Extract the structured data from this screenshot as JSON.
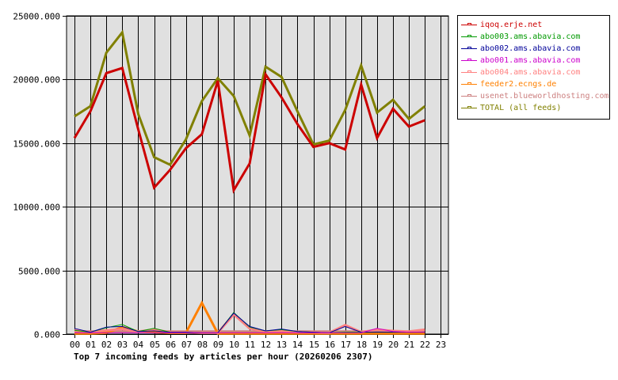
{
  "chart_data": {
    "type": "line",
    "title": "Top 7 incoming feeds by articles per hour (20260206 2307)",
    "xlabel": "",
    "ylabel": "",
    "ylim": [
      0,
      25000
    ],
    "yticks": [
      "0.000",
      "5000.000",
      "10000.000",
      "15000.000",
      "20000.000",
      "25000.000"
    ],
    "grid": true,
    "legend_position": "right",
    "categories": [
      "00",
      "01",
      "02",
      "03",
      "04",
      "05",
      "06",
      "07",
      "08",
      "09",
      "10",
      "11",
      "12",
      "13",
      "14",
      "15",
      "16",
      "17",
      "18",
      "19",
      "20",
      "21",
      "22",
      "23"
    ],
    "series": [
      {
        "name": "iqoq.erje.net",
        "color": "#cc0000",
        "width": 3,
        "values": [
          15400,
          17500,
          20500,
          20900,
          16100,
          11500,
          12900,
          14600,
          15700,
          19900,
          11300,
          13400,
          20400,
          18600,
          16500,
          14700,
          15000,
          14500,
          19600,
          15400,
          17700,
          16300,
          16800
        ]
      },
      {
        "name": "abo003.ams.abavia.com",
        "color": "#009900",
        "width": 1,
        "values": [
          300,
          150,
          500,
          750,
          200,
          450,
          150,
          150,
          100,
          100,
          1700,
          550,
          250,
          350,
          200,
          150,
          100,
          150,
          150,
          150,
          150,
          150,
          150
        ]
      },
      {
        "name": "abo002.ams.abavia.com",
        "color": "#000099",
        "width": 1,
        "values": [
          450,
          150,
          550,
          600,
          200,
          250,
          150,
          150,
          100,
          100,
          1650,
          600,
          250,
          400,
          200,
          150,
          100,
          600,
          150,
          150,
          150,
          150,
          150
        ]
      },
      {
        "name": "abo001.ams.abavia.com",
        "color": "#cc00cc",
        "width": 1,
        "values": [
          100,
          100,
          100,
          100,
          100,
          100,
          100,
          100,
          100,
          100,
          100,
          100,
          100,
          100,
          100,
          100,
          100,
          100,
          100,
          450,
          200,
          150,
          150
        ]
      },
      {
        "name": "abo004.ams.abavia.com",
        "color": "#ff8080",
        "width": 3,
        "values": [
          300,
          150,
          300,
          400,
          200,
          350,
          150,
          150,
          100,
          100,
          1550,
          450,
          200,
          250,
          150,
          150,
          100,
          700,
          150,
          350,
          250,
          200,
          350
        ]
      },
      {
        "name": "feeder2.ecngs.de",
        "color": "#ff8000",
        "width": 3,
        "values": [
          50,
          50,
          100,
          550,
          200,
          150,
          100,
          100,
          2450,
          50,
          50,
          50,
          50,
          50,
          50,
          50,
          50,
          50,
          50,
          50,
          50,
          50,
          50
        ]
      },
      {
        "name": "usenet.blueworldhosting.com",
        "color": "#cc8080",
        "width": 3,
        "values": [
          200,
          200,
          200,
          200,
          200,
          200,
          200,
          200,
          200,
          200,
          200,
          200,
          200,
          200,
          200,
          200,
          200,
          200,
          200,
          200,
          200,
          200,
          200
        ]
      },
      {
        "name": "TOTAL (all feeds)",
        "color": "#808000",
        "width": 3,
        "values": [
          17100,
          17900,
          22100,
          23700,
          17300,
          13900,
          13300,
          15300,
          18300,
          20100,
          18700,
          15600,
          21000,
          20200,
          17500,
          14900,
          15200,
          17600,
          21100,
          17400,
          18400,
          16900,
          17900
        ]
      }
    ]
  },
  "legend": {
    "items": [
      {
        "label": "iqoq.erje.net",
        "color": "#cc0000"
      },
      {
        "label": "abo003.ams.abavia.com",
        "color": "#009900"
      },
      {
        "label": "abo002.ams.abavia.com",
        "color": "#000099"
      },
      {
        "label": "abo001.ams.abavia.com",
        "color": "#cc00cc"
      },
      {
        "label": "abo004.ams.abavia.com",
        "color": "#ff8080"
      },
      {
        "label": "feeder2.ecngs.de",
        "color": "#ff8000"
      },
      {
        "label": "usenet.blueworldhosting.com",
        "color": "#cc8080"
      },
      {
        "label": "TOTAL (all feeds)",
        "color": "#808000"
      }
    ]
  },
  "colors": {
    "plot_background": "#e0e0e0",
    "grid": "#000000",
    "axis_text": "#000000"
  }
}
